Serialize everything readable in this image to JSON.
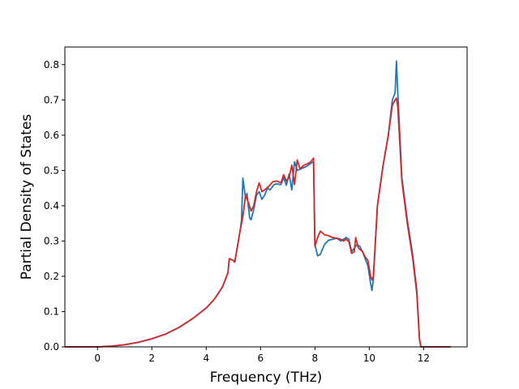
{
  "chart_data": {
    "type": "line",
    "title": "",
    "xlabel": "Frequency (THz)",
    "ylabel": "Partial Density of States",
    "xlim": [
      -1.2,
      13.6
    ],
    "ylim": [
      0,
      0.85
    ],
    "xticks": [
      0,
      2,
      4,
      6,
      8,
      10,
      12
    ],
    "xtick_labels": [
      "0",
      "2",
      "4",
      "6",
      "8",
      "10",
      "12"
    ],
    "yticks": [
      0.0,
      0.1,
      0.2,
      0.3,
      0.4,
      0.5,
      0.6,
      0.7,
      0.8
    ],
    "ytick_labels": [
      "0.0",
      "0.1",
      "0.2",
      "0.3",
      "0.4",
      "0.5",
      "0.6",
      "0.7",
      "0.8"
    ],
    "grid": false,
    "legend": "none",
    "series": [
      {
        "color": "#1f77b4",
        "points": [
          [
            -1.2,
            0.0
          ],
          [
            0.0,
            0.0
          ],
          [
            0.5,
            0.002
          ],
          [
            1.0,
            0.006
          ],
          [
            1.5,
            0.013
          ],
          [
            2.0,
            0.023
          ],
          [
            2.5,
            0.036
          ],
          [
            3.0,
            0.055
          ],
          [
            3.5,
            0.08
          ],
          [
            4.0,
            0.11
          ],
          [
            4.3,
            0.135
          ],
          [
            4.6,
            0.17
          ],
          [
            4.8,
            0.21
          ],
          [
            4.85,
            0.25
          ],
          [
            5.0,
            0.245
          ],
          [
            5.05,
            0.24
          ],
          [
            5.15,
            0.285
          ],
          [
            5.25,
            0.33
          ],
          [
            5.3,
            0.36
          ],
          [
            5.35,
            0.478
          ],
          [
            5.45,
            0.42
          ],
          [
            5.5,
            0.435
          ],
          [
            5.6,
            0.365
          ],
          [
            5.65,
            0.36
          ],
          [
            5.75,
            0.39
          ],
          [
            5.85,
            0.43
          ],
          [
            5.95,
            0.44
          ],
          [
            6.05,
            0.418
          ],
          [
            6.15,
            0.43
          ],
          [
            6.25,
            0.45
          ],
          [
            6.35,
            0.445
          ],
          [
            6.5,
            0.46
          ],
          [
            6.6,
            0.462
          ],
          [
            6.75,
            0.46
          ],
          [
            6.85,
            0.48
          ],
          [
            6.95,
            0.458
          ],
          [
            7.05,
            0.49
          ],
          [
            7.15,
            0.445
          ],
          [
            7.25,
            0.525
          ],
          [
            7.35,
            0.5
          ],
          [
            7.5,
            0.505
          ],
          [
            7.65,
            0.51
          ],
          [
            7.75,
            0.515
          ],
          [
            7.85,
            0.52
          ],
          [
            7.95,
            0.525
          ],
          [
            8.0,
            0.29
          ],
          [
            8.1,
            0.258
          ],
          [
            8.2,
            0.262
          ],
          [
            8.35,
            0.29
          ],
          [
            8.5,
            0.302
          ],
          [
            8.65,
            0.305
          ],
          [
            8.8,
            0.308
          ],
          [
            8.95,
            0.3
          ],
          [
            9.05,
            0.305
          ],
          [
            9.15,
            0.31
          ],
          [
            9.25,
            0.305
          ],
          [
            9.35,
            0.27
          ],
          [
            9.45,
            0.28
          ],
          [
            9.55,
            0.29
          ],
          [
            9.65,
            0.285
          ],
          [
            9.75,
            0.27
          ],
          [
            9.85,
            0.25
          ],
          [
            9.95,
            0.23
          ],
          [
            10.05,
            0.18
          ],
          [
            10.1,
            0.16
          ],
          [
            10.15,
            0.19
          ],
          [
            10.3,
            0.4
          ],
          [
            10.5,
            0.51
          ],
          [
            10.7,
            0.6
          ],
          [
            10.85,
            0.7
          ],
          [
            10.95,
            0.72
          ],
          [
            11.0,
            0.81
          ],
          [
            11.05,
            0.72
          ],
          [
            11.2,
            0.48
          ],
          [
            11.4,
            0.36
          ],
          [
            11.6,
            0.26
          ],
          [
            11.75,
            0.16
          ],
          [
            11.85,
            0.02
          ],
          [
            11.9,
            0.0
          ],
          [
            13.0,
            0.0
          ]
        ]
      },
      {
        "color": "#d62728",
        "points": [
          [
            -1.2,
            0.0
          ],
          [
            0.0,
            0.0
          ],
          [
            0.5,
            0.002
          ],
          [
            1.0,
            0.006
          ],
          [
            1.5,
            0.013
          ],
          [
            2.0,
            0.023
          ],
          [
            2.5,
            0.036
          ],
          [
            3.0,
            0.055
          ],
          [
            3.5,
            0.08
          ],
          [
            4.0,
            0.11
          ],
          [
            4.3,
            0.135
          ],
          [
            4.6,
            0.17
          ],
          [
            4.8,
            0.21
          ],
          [
            4.85,
            0.25
          ],
          [
            5.0,
            0.245
          ],
          [
            5.05,
            0.24
          ],
          [
            5.15,
            0.285
          ],
          [
            5.25,
            0.33
          ],
          [
            5.35,
            0.37
          ],
          [
            5.45,
            0.43
          ],
          [
            5.55,
            0.41
          ],
          [
            5.65,
            0.385
          ],
          [
            5.75,
            0.4
          ],
          [
            5.85,
            0.44
          ],
          [
            5.95,
            0.465
          ],
          [
            6.05,
            0.44
          ],
          [
            6.15,
            0.445
          ],
          [
            6.3,
            0.455
          ],
          [
            6.45,
            0.468
          ],
          [
            6.6,
            0.47
          ],
          [
            6.75,
            0.465
          ],
          [
            6.85,
            0.488
          ],
          [
            6.95,
            0.47
          ],
          [
            7.05,
            0.48
          ],
          [
            7.15,
            0.515
          ],
          [
            7.25,
            0.46
          ],
          [
            7.35,
            0.53
          ],
          [
            7.45,
            0.505
          ],
          [
            7.6,
            0.515
          ],
          [
            7.75,
            0.52
          ],
          [
            7.85,
            0.525
          ],
          [
            7.95,
            0.535
          ],
          [
            8.0,
            0.285
          ],
          [
            8.1,
            0.31
          ],
          [
            8.2,
            0.328
          ],
          [
            8.35,
            0.318
          ],
          [
            8.5,
            0.315
          ],
          [
            8.65,
            0.31
          ],
          [
            8.8,
            0.308
          ],
          [
            8.95,
            0.305
          ],
          [
            9.05,
            0.3
          ],
          [
            9.15,
            0.305
          ],
          [
            9.25,
            0.298
          ],
          [
            9.35,
            0.265
          ],
          [
            9.45,
            0.27
          ],
          [
            9.5,
            0.31
          ],
          [
            9.6,
            0.28
          ],
          [
            9.75,
            0.27
          ],
          [
            9.85,
            0.255
          ],
          [
            9.95,
            0.245
          ],
          [
            10.05,
            0.2
          ],
          [
            10.1,
            0.19
          ],
          [
            10.15,
            0.2
          ],
          [
            10.3,
            0.4
          ],
          [
            10.5,
            0.51
          ],
          [
            10.7,
            0.6
          ],
          [
            10.85,
            0.685
          ],
          [
            10.95,
            0.7
          ],
          [
            11.0,
            0.705
          ],
          [
            11.05,
            0.68
          ],
          [
            11.2,
            0.47
          ],
          [
            11.4,
            0.35
          ],
          [
            11.6,
            0.25
          ],
          [
            11.75,
            0.15
          ],
          [
            11.85,
            0.02
          ],
          [
            11.9,
            0.0
          ],
          [
            13.0,
            0.0
          ]
        ]
      }
    ]
  }
}
